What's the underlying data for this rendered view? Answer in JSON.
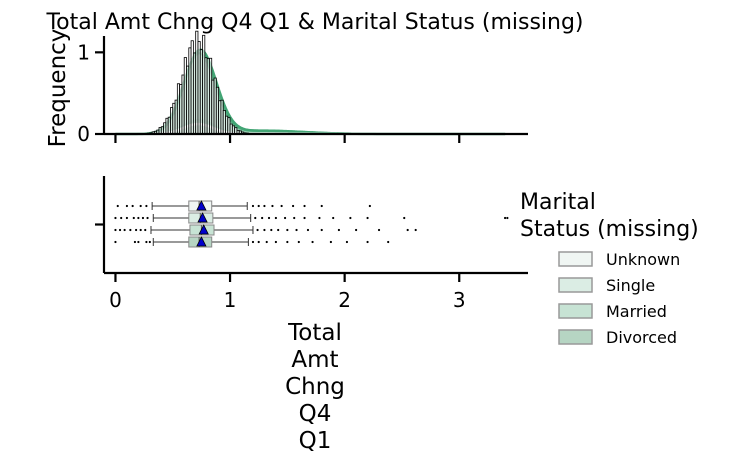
{
  "chart_data": [
    {
      "type": "histogram",
      "title": "Total Amt Chng Q4 Q1 & Marital Status (missing)",
      "ylabel": "Frequency",
      "xlim": [
        -0.1,
        3.6
      ],
      "ylim": [
        0,
        1.2
      ],
      "yticks": [
        {
          "value": 0,
          "label": "0"
        },
        {
          "value": 1,
          "label": "1"
        }
      ],
      "grid": false,
      "kde_series": [
        {
          "name": "Unknown",
          "peak_x": 0.73,
          "peak_y": 0.17,
          "spread": 0.13
        },
        {
          "name": "Single",
          "peak_x": 0.73,
          "peak_y": 0.98,
          "spread": 0.14
        },
        {
          "name": "Married",
          "peak_x": 0.74,
          "peak_y": 1.02,
          "spread": 0.14
        },
        {
          "name": "Divorced",
          "peak_x": 0.72,
          "peak_y": 0.12,
          "spread": 0.13
        }
      ],
      "histogram": {
        "bin_width": 0.02,
        "x_start": 0.2,
        "x_end": 1.6,
        "peak_x": 0.72,
        "peak_y": 1.15,
        "spread": 0.14
      }
    },
    {
      "type": "boxplot",
      "xlabel": "Total Amt Chng Q4 Q1",
      "xlim": [
        -0.1,
        3.6
      ],
      "xticks": [
        {
          "value": 0,
          "label": "0"
        },
        {
          "value": 1,
          "label": "1"
        },
        {
          "value": 2,
          "label": "2"
        },
        {
          "value": 3,
          "label": "3"
        }
      ],
      "series": [
        {
          "name": "Unknown",
          "whisker_low": 0.32,
          "q1": 0.64,
          "median": 0.73,
          "q3": 0.84,
          "whisker_high": 1.15,
          "mean": 0.75,
          "outliers": [
            0.02,
            0.1,
            0.15,
            0.22,
            0.27,
            1.2,
            1.25,
            1.3,
            1.37,
            1.45,
            1.55,
            1.65,
            1.8,
            2.22
          ]
        },
        {
          "name": "Single",
          "whisker_low": 0.33,
          "q1": 0.64,
          "median": 0.74,
          "q3": 0.85,
          "whisker_high": 1.18,
          "mean": 0.76,
          "outliers": [
            0.0,
            0.05,
            0.1,
            0.16,
            0.2,
            0.24,
            0.28,
            1.22,
            1.28,
            1.34,
            1.4,
            1.48,
            1.56,
            1.65,
            1.78,
            1.9,
            2.05,
            2.2,
            2.52,
            3.4,
            3.42
          ]
        },
        {
          "name": "Married",
          "whisker_low": 0.31,
          "q1": 0.65,
          "median": 0.75,
          "q3": 0.86,
          "whisker_high": 1.2,
          "mean": 0.77,
          "outliers": [
            0.0,
            0.04,
            0.08,
            0.13,
            0.18,
            0.22,
            0.26,
            1.24,
            1.3,
            1.36,
            1.42,
            1.5,
            1.58,
            1.68,
            1.8,
            1.95,
            2.1,
            2.3,
            2.55,
            2.62
          ]
        },
        {
          "name": "Divorced",
          "whisker_low": 0.33,
          "q1": 0.64,
          "median": 0.73,
          "q3": 0.84,
          "whisker_high": 1.16,
          "mean": 0.75,
          "outliers": [
            0.0,
            0.17,
            0.2,
            0.27,
            0.3,
            1.2,
            1.25,
            1.32,
            1.4,
            1.5,
            1.6,
            1.72,
            1.88,
            2.02,
            2.2,
            2.38
          ]
        }
      ]
    }
  ],
  "legend": {
    "title": "Marital\nStatus (missing)",
    "placement": "right",
    "entries": [
      {
        "label": "Unknown",
        "color": "#f0f6f3"
      },
      {
        "label": "Single",
        "color": "#dbede4"
      },
      {
        "label": "Married",
        "color": "#c7e3d4"
      },
      {
        "label": "Divorced",
        "color": "#b6d5c3"
      }
    ]
  },
  "colors": {
    "kde": [
      "#cde9d9",
      "#5cb387",
      "#42a574",
      "#e8f4ee"
    ],
    "hist_fill": "#ffffff",
    "hist_edge": "#000000",
    "mean_marker": "#0000cc"
  }
}
